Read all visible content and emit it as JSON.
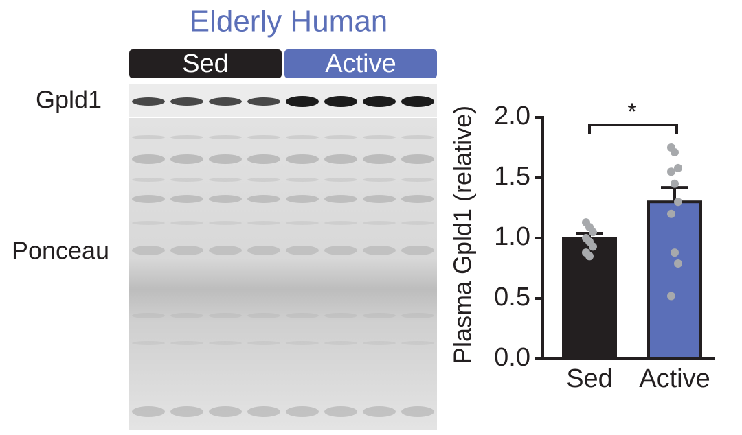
{
  "blot": {
    "title": "Elderly Human",
    "groups": [
      "Sed",
      "Active"
    ],
    "group_colors": [
      "#231f20",
      "#5b6fb8"
    ],
    "rows": [
      "Gpld1",
      "Ponceau"
    ]
  },
  "chart_data": {
    "type": "bar",
    "ylabel": "Plasma Gpld1 (relative)",
    "categories": [
      "Sed",
      "Active"
    ],
    "values": [
      1.0,
      1.3
    ],
    "errors": [
      0.04,
      0.12
    ],
    "colors": [
      "#231f20",
      "#5b6fb8"
    ],
    "points": [
      [
        1.13,
        1.09,
        1.05,
        1.0,
        0.97,
        0.93,
        0.88,
        0.85
      ],
      [
        1.75,
        1.71,
        1.58,
        1.55,
        1.45,
        1.3,
        1.2,
        0.88,
        0.79,
        0.52
      ]
    ],
    "point_color": "#a7a9ac",
    "ylim": [
      0,
      2
    ],
    "yticks": [
      {
        "value": 0,
        "label": "0.0"
      },
      {
        "value": 0.5,
        "label": "0.5"
      },
      {
        "value": 1,
        "label": "1.0"
      },
      {
        "value": 1.5,
        "label": "1.5"
      },
      {
        "value": 2,
        "label": "2.0"
      }
    ],
    "annotation": "*"
  }
}
